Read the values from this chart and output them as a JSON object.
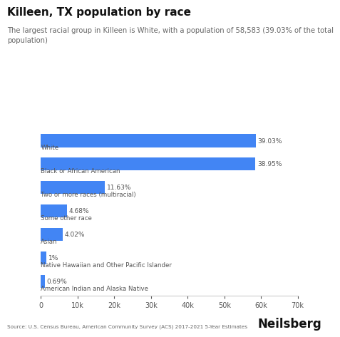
{
  "title": "Killeen, TX population by race",
  "subtitle": "The largest racial group in Killeen is White, with a population of 58,583 (39.03% of the total\npopulation)",
  "categories": [
    "White",
    "Black or African American",
    "Two or more races (multiracial)",
    "Some other race",
    "Asian",
    "Native Hawaiian and Other Pacific Islander",
    "American Indian and Alaska Native"
  ],
  "values": [
    58583,
    58462,
    17453,
    7026,
    6036,
    1502,
    1036
  ],
  "percentages": [
    "39.03%",
    "38.95%",
    "11.63%",
    "4.68%",
    "4.02%",
    "1%",
    "0.69%"
  ],
  "bar_color": "#4285f4",
  "background_color": "#ffffff",
  "label_color": "#555555",
  "title_color": "#111111",
  "subtitle_color": "#666666",
  "source_text": "Source: U.S. Census Bureau, American Community Survey (ACS) 2017-2021 5-Year Estimates",
  "brand_text": "Neilsberg",
  "xlim": [
    0,
    70000
  ],
  "xticks": [
    0,
    10000,
    20000,
    30000,
    40000,
    50000,
    60000,
    70000
  ],
  "xtick_labels": [
    "0",
    "10k",
    "20k",
    "30k",
    "40k",
    "50k",
    "60k",
    "70k"
  ]
}
